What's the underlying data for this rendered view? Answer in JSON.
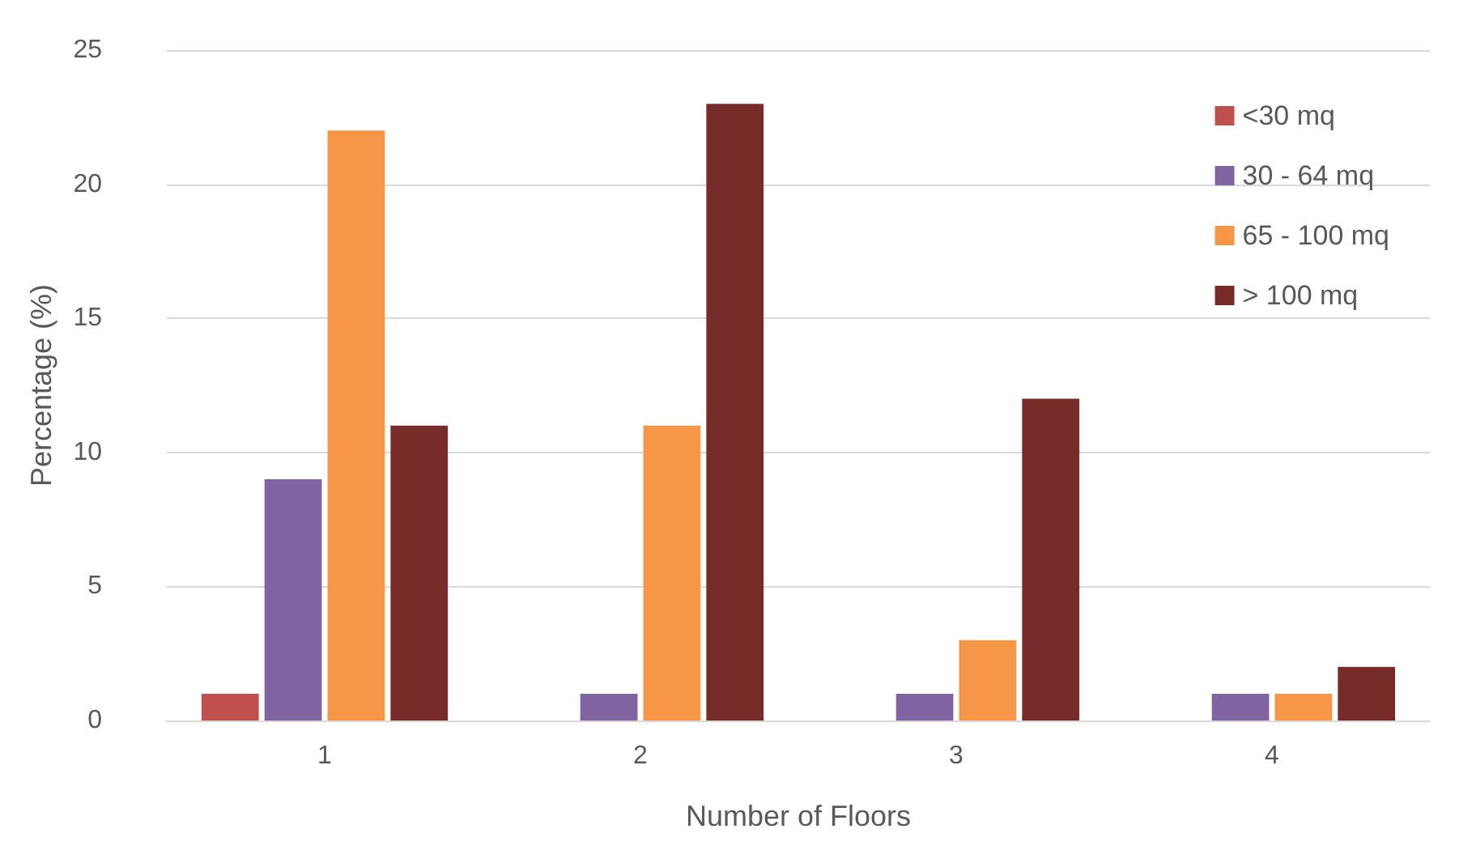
{
  "chart_data": {
    "type": "bar",
    "xlabel": "Number of Floors",
    "ylabel": "Percentage (%)",
    "categories": [
      "1",
      "2",
      "3",
      "4"
    ],
    "series": [
      {
        "name": "<30 mq",
        "color": "#c0504d",
        "values": [
          1,
          0,
          0,
          0
        ]
      },
      {
        "name": "30 - 64 mq",
        "color": "#8064a2",
        "values": [
          9,
          1,
          1,
          1
        ]
      },
      {
        "name": "65 - 100 mq",
        "color": "#f79646",
        "values": [
          22,
          11,
          3,
          1
        ]
      },
      {
        "name": "> 100 mq",
        "color": "#772c2a",
        "values": [
          11,
          23,
          12,
          2
        ]
      }
    ],
    "ylim": [
      0,
      25
    ],
    "yticks": [
      0,
      5,
      10,
      15,
      20,
      25
    ],
    "grid": "y",
    "legend": "top right"
  }
}
